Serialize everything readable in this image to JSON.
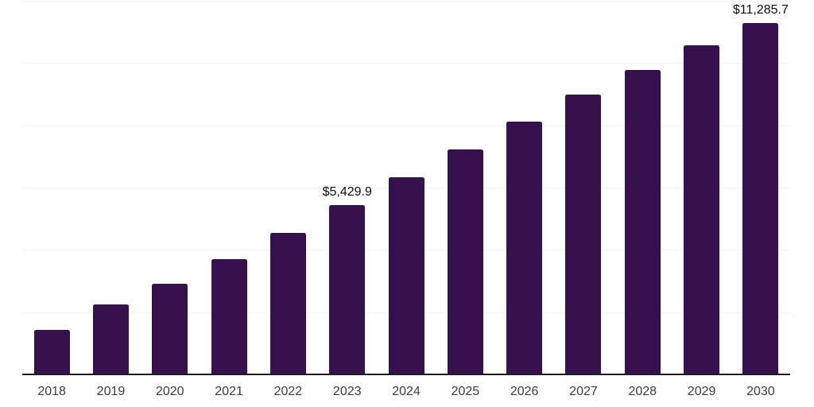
{
  "chart_data": {
    "type": "bar",
    "title": "",
    "xlabel": "",
    "ylabel": "",
    "categories": [
      "2018",
      "2019",
      "2020",
      "2021",
      "2022",
      "2023",
      "2024",
      "2025",
      "2026",
      "2027",
      "2028",
      "2029",
      "2030"
    ],
    "values": [
      1420,
      2255,
      2920,
      3700,
      4535,
      5429.9,
      6340,
      7235,
      8125,
      8990,
      9785,
      10560,
      11285.7
    ],
    "data_labels": {
      "2023": "$5,429.9",
      "2030": "$11,285.7"
    },
    "ylim": [
      0,
      12000
    ],
    "gridline_interval": 2000,
    "grid": "horizontal",
    "legend": "none",
    "colors": {
      "bar": "#36114d",
      "axis_line": "#1c1c1c",
      "gridline": "#f2f2f2",
      "tick_label": "#3d3d3d",
      "data_label": "#0f0f0f",
      "background": "#ffffff"
    }
  }
}
